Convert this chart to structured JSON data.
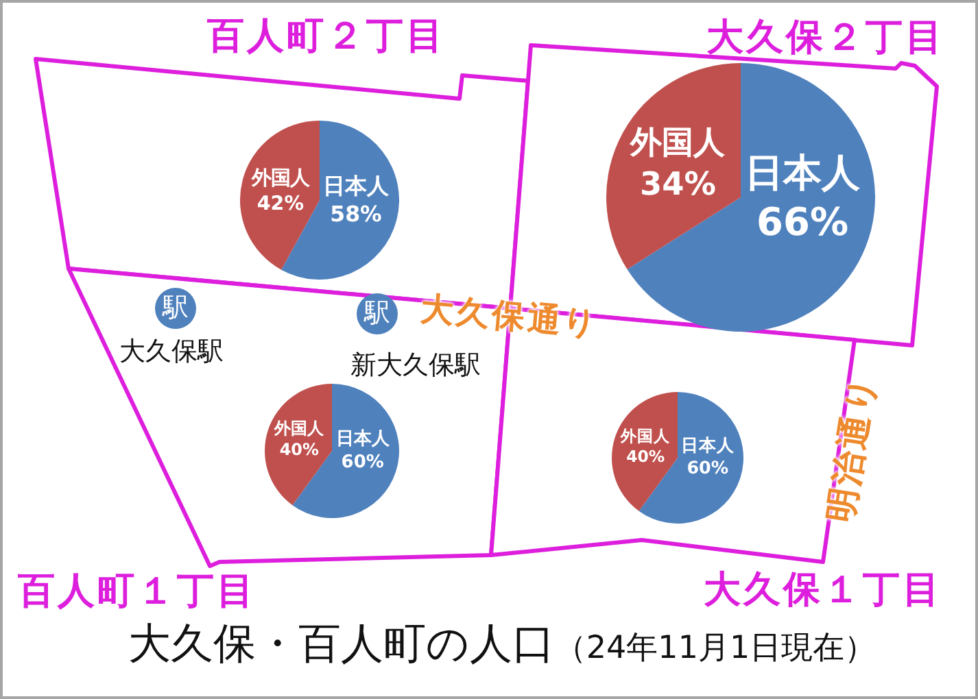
{
  "chart_data": [
    {
      "type": "pie",
      "title": "百人町２丁目",
      "categories": [
        "日本人",
        "外国人"
      ],
      "values": [
        58,
        42
      ],
      "colors": [
        "#4f81bd",
        "#c0504d"
      ],
      "value_labels": [
        "58%",
        "42%"
      ]
    },
    {
      "type": "pie",
      "title": "大久保２丁目",
      "categories": [
        "日本人",
        "外国人"
      ],
      "values": [
        66,
        34
      ],
      "colors": [
        "#4f81bd",
        "#c0504d"
      ],
      "value_labels": [
        "66%",
        "34%"
      ]
    },
    {
      "type": "pie",
      "title": "百人町１丁目",
      "categories": [
        "日本人",
        "外国人"
      ],
      "values": [
        60,
        40
      ],
      "colors": [
        "#4f81bd",
        "#c0504d"
      ],
      "value_labels": [
        "60%",
        "40%"
      ]
    },
    {
      "type": "pie",
      "title": "大久保１丁目",
      "categories": [
        "日本人",
        "外国人"
      ],
      "values": [
        60,
        40
      ],
      "colors": [
        "#4f81bd",
        "#c0504d"
      ],
      "value_labels": [
        "60%",
        "40%"
      ]
    },
    {
      "type": "other",
      "title": "大久保・百人町の人口",
      "subtitle": "（24年11月1日現在）",
      "annotations": [
        "大久保駅",
        "新大久保駅",
        "大久保通り",
        "明治通り",
        "駅",
        "駅"
      ]
    }
  ]
}
